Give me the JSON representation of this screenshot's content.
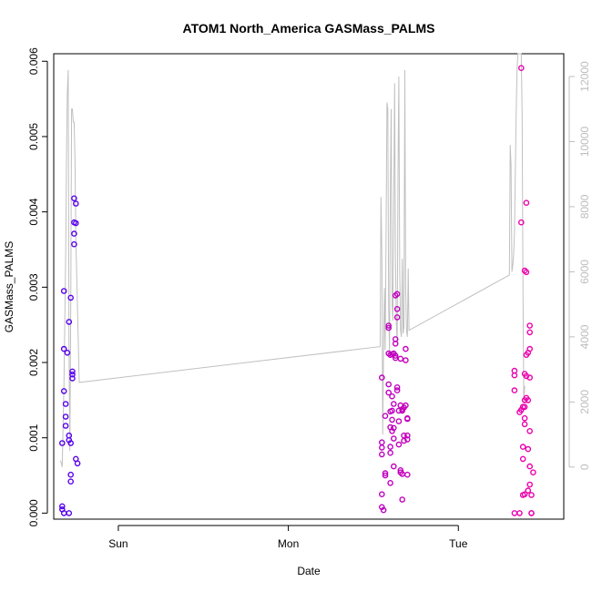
{
  "chart_data": {
    "type": "scatter",
    "title": "ATOM1 North_America GASMass_PALMS",
    "xlabel": "Date",
    "ylabel": "GASMass_PALMS",
    "x_axis_type": "date",
    "x_range_days": [
      -0.38,
      2.62
    ],
    "x_ticks": [
      {
        "value": 0,
        "label": "Sun"
      },
      {
        "value": 1,
        "label": "Mon"
      },
      {
        "value": 2,
        "label": "Tue"
      }
    ],
    "ylim": [
      -8e-05,
      0.0061
    ],
    "y_ticks": [
      0.0,
      0.001,
      0.002,
      0.003,
      0.004,
      0.005,
      0.006
    ],
    "y_tick_labels": [
      "0.000",
      "0.001",
      "0.002",
      "0.003",
      "0.004",
      "0.005",
      "0.006"
    ],
    "y2lim": [
      -1600,
      12700
    ],
    "y2_ticks": [
      0,
      2000,
      4000,
      6000,
      8000,
      10000,
      12000
    ],
    "y2_tick_labels": [
      "0",
      "2000",
      "4000",
      "6000",
      "8000",
      "10000",
      "12000"
    ],
    "grid": false,
    "colors": {
      "points_start": "#5500ee",
      "points_end": "#ee00aa",
      "altitude_line": "#c0c0c0",
      "right_axis": "#bdbdbd",
      "frame": "#000000"
    },
    "series": [
      {
        "marker": "open-circle",
        "axis": "left",
        "points": [
          [
            -0.33,
            9e-05
          ],
          [
            -0.33,
            5e-05
          ],
          [
            -0.32,
            0.0
          ],
          [
            -0.33,
            0.00093
          ],
          [
            -0.32,
            0.00162
          ],
          [
            -0.32,
            0.00295
          ],
          [
            -0.32,
            0.00218
          ],
          [
            -0.31,
            0.00145
          ],
          [
            -0.31,
            0.00128
          ],
          [
            -0.31,
            0.00116
          ],
          [
            -0.3,
            0.00213
          ],
          [
            -0.29,
            0.00254
          ],
          [
            -0.29,
            0.00103
          ],
          [
            -0.29,
            0.00097
          ],
          [
            -0.28,
            0.00093
          ],
          [
            -0.29,
            0.0
          ],
          [
            -0.28,
            0.00051
          ],
          [
            -0.28,
            0.00042
          ],
          [
            -0.28,
            0.00286
          ],
          [
            -0.27,
            0.00188
          ],
          [
            -0.27,
            0.00184
          ],
          [
            -0.27,
            0.00179
          ],
          [
            -0.26,
            0.00418
          ],
          [
            -0.26,
            0.00386
          ],
          [
            -0.26,
            0.00371
          ],
          [
            -0.26,
            0.00357
          ],
          [
            -0.25,
            0.00411
          ],
          [
            -0.25,
            0.00385
          ],
          [
            -0.25,
            0.00072
          ],
          [
            -0.24,
            0.00066
          ],
          [
            1.55,
            0.0018
          ],
          [
            1.55,
            0.00094
          ],
          [
            1.55,
            0.00087
          ],
          [
            1.55,
            0.00078
          ],
          [
            1.55,
            0.00025
          ],
          [
            1.55,
            8e-05
          ],
          [
            1.56,
            4e-05
          ],
          [
            1.57,
            0.00129
          ],
          [
            1.57,
            0.00053
          ],
          [
            1.57,
            0.0005
          ],
          [
            1.59,
            0.00171
          ],
          [
            1.59,
            0.0016
          ],
          [
            1.59,
            0.00249
          ],
          [
            1.59,
            0.00246
          ],
          [
            1.59,
            0.00212
          ],
          [
            1.6,
            0.0021
          ],
          [
            1.6,
            0.00135
          ],
          [
            1.6,
            0.00114
          ],
          [
            1.6,
            0.00088
          ],
          [
            1.6,
            0.0008
          ],
          [
            1.6,
            0.0004
          ],
          [
            1.61,
            0.00211
          ],
          [
            1.61,
            0.00155
          ],
          [
            1.61,
            0.00136
          ],
          [
            1.61,
            0.00124
          ],
          [
            1.61,
            0.00109
          ],
          [
            1.62,
            0.00099
          ],
          [
            1.62,
            0.00212
          ],
          [
            1.62,
            0.00145
          ],
          [
            1.62,
            0.00113
          ],
          [
            1.62,
            0.00062
          ],
          [
            1.63,
            0.00289
          ],
          [
            1.63,
            0.00231
          ],
          [
            1.63,
            0.00225
          ],
          [
            1.63,
            0.00209
          ],
          [
            1.63,
            0.00206
          ],
          [
            1.64,
            0.00291
          ],
          [
            1.64,
            0.00271
          ],
          [
            1.64,
            0.0026
          ],
          [
            1.64,
            0.00167
          ],
          [
            1.64,
            0.00163
          ],
          [
            1.65,
            0.00136
          ],
          [
            1.65,
            0.00122
          ],
          [
            1.65,
            0.00091
          ],
          [
            1.66,
            0.00057
          ],
          [
            1.66,
            0.00054
          ],
          [
            1.66,
            0.00205
          ],
          [
            1.66,
            0.00143
          ],
          [
            1.67,
            0.00136
          ],
          [
            1.67,
            0.00052
          ],
          [
            1.67,
            0.00018
          ],
          [
            1.67,
            0.00138
          ],
          [
            1.68,
            0.00103
          ],
          [
            1.68,
            0.00096
          ],
          [
            1.68,
            0.0014
          ],
          [
            1.69,
            0.00143
          ],
          [
            1.69,
            0.00218
          ],
          [
            1.69,
            0.00203
          ],
          [
            1.7,
            0.00126
          ],
          [
            1.7,
            0.00125
          ],
          [
            1.7,
            0.00103
          ],
          [
            1.7,
            0.00098
          ],
          [
            1.7,
            0.00051
          ],
          [
            2.33,
            0.00189
          ],
          [
            2.33,
            0.00183
          ],
          [
            2.33,
            0.00163
          ],
          [
            2.33,
            0.0
          ],
          [
            2.36,
            0.0
          ],
          [
            2.36,
            0.00134
          ],
          [
            2.37,
            0.00591
          ],
          [
            2.37,
            0.00386
          ],
          [
            2.37,
            0.00137
          ],
          [
            2.38,
            0.00141
          ],
          [
            2.38,
            0.00141
          ],
          [
            2.38,
            0.00088
          ],
          [
            2.38,
            0.00072
          ],
          [
            2.38,
            0.00024
          ],
          [
            2.39,
            0.00322
          ],
          [
            2.39,
            0.00185
          ],
          [
            2.39,
            0.0015
          ],
          [
            2.39,
            0.00141
          ],
          [
            2.39,
            0.00126
          ],
          [
            2.39,
            0.00118
          ],
          [
            2.39,
            0.00025
          ],
          [
            2.4,
            0.00412
          ],
          [
            2.4,
            0.0032
          ],
          [
            2.4,
            0.0021
          ],
          [
            2.4,
            0.00182
          ],
          [
            2.4,
            0.00153
          ],
          [
            2.41,
            0.00213
          ],
          [
            2.41,
            0.0015
          ],
          [
            2.41,
            0.00085
          ],
          [
            2.41,
            0.0003
          ],
          [
            2.42,
            0.00249
          ],
          [
            2.42,
            0.0024
          ],
          [
            2.42,
            0.00218
          ],
          [
            2.42,
            0.0018
          ],
          [
            2.42,
            0.00109
          ],
          [
            2.42,
            0.00062
          ],
          [
            2.42,
            0.00038
          ],
          [
            2.43,
            0.00024
          ],
          [
            2.43,
            0.0
          ],
          [
            2.43,
            0.0
          ],
          [
            2.44,
            0.00054
          ]
        ]
      },
      {
        "marker": "line",
        "axis": "right",
        "points": [
          [
            -0.34,
            200
          ],
          [
            -0.33,
            0
          ],
          [
            -0.32,
            2500
          ],
          [
            -0.31,
            6500
          ],
          [
            -0.305,
            9500
          ],
          [
            -0.3,
            11500
          ],
          [
            -0.295,
            12200
          ],
          [
            -0.29,
            3500
          ],
          [
            -0.285,
            500
          ],
          [
            -0.28,
            5000
          ],
          [
            -0.275,
            11000
          ],
          [
            -0.27,
            11000
          ],
          [
            -0.265,
            10600
          ],
          [
            -0.26,
            10600
          ],
          [
            -0.255,
            9500
          ],
          [
            -0.25,
            7000
          ],
          [
            -0.23,
            2600
          ],
          [
            1.54,
            3700
          ],
          [
            1.545,
            8300
          ],
          [
            1.55,
            6500
          ],
          [
            1.555,
            1000
          ],
          [
            1.56,
            3500
          ],
          [
            1.565,
            5500
          ],
          [
            1.57,
            3600
          ],
          [
            1.58,
            11200
          ],
          [
            1.585,
            11000
          ],
          [
            1.59,
            5000
          ],
          [
            1.595,
            3500
          ],
          [
            1.6,
            8500
          ],
          [
            1.605,
            11000
          ],
          [
            1.61,
            5000
          ],
          [
            1.615,
            4500
          ],
          [
            1.62,
            8000
          ],
          [
            1.625,
            11800
          ],
          [
            1.63,
            6500
          ],
          [
            1.635,
            4500
          ],
          [
            1.64,
            3800
          ],
          [
            1.645,
            9000
          ],
          [
            1.65,
            12000
          ],
          [
            1.655,
            6000
          ],
          [
            1.66,
            4200
          ],
          [
            1.665,
            4000
          ],
          [
            1.67,
            6400
          ],
          [
            1.675,
            4100
          ],
          [
            1.68,
            4300
          ],
          [
            1.685,
            12200
          ],
          [
            1.69,
            5500
          ],
          [
            1.695,
            4200
          ],
          [
            1.7,
            4000
          ],
          [
            1.705,
            6100
          ],
          [
            1.71,
            4200
          ],
          [
            2.3,
            5900
          ],
          [
            2.305,
            9900
          ],
          [
            2.31,
            9300
          ],
          [
            2.315,
            6000
          ],
          [
            2.32,
            6200
          ],
          [
            2.325,
            6500
          ],
          [
            2.33,
            7200
          ],
          [
            2.34,
            10800
          ],
          [
            2.345,
            12200
          ],
          [
            2.35,
            12700
          ],
          [
            2.36,
            12700
          ],
          [
            2.37,
            12700
          ],
          [
            2.375,
            10800
          ],
          [
            2.38,
            5500
          ],
          [
            2.385,
            2000
          ],
          [
            2.39,
            2500
          ]
        ]
      }
    ]
  }
}
